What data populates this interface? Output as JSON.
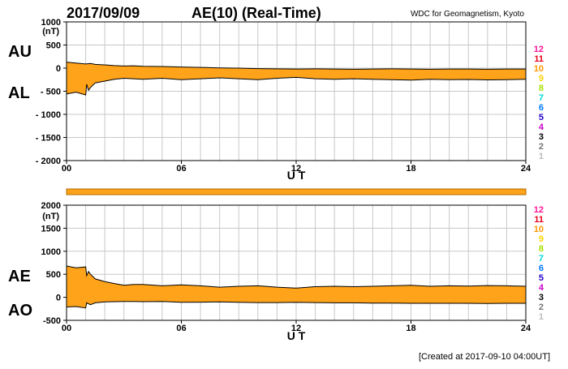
{
  "header": {
    "date": "2017/09/09",
    "title": "AE(10) (Real-Time)",
    "source": "WDC for Geomagnetism, Kyoto"
  },
  "footer": {
    "created": "[Created at 2017-09-10 04:00UT]"
  },
  "colors": {
    "fill": "#ffa31a",
    "grid": "#c8c8c8",
    "axis": "#000000",
    "station_bar": "#ffa31a"
  },
  "station_counts": [
    {
      "label": "12",
      "color": "#ff1493"
    },
    {
      "label": "11",
      "color": "#e8001a"
    },
    {
      "label": "10",
      "color": "#ff9900"
    },
    {
      "label": "9",
      "color": "#ffd400"
    },
    {
      "label": "8",
      "color": "#a8e000"
    },
    {
      "label": "7",
      "color": "#00d8d8"
    },
    {
      "label": "6",
      "color": "#0077ff"
    },
    {
      "label": "5",
      "color": "#2200cc"
    },
    {
      "label": "4",
      "color": "#cc00cc"
    },
    {
      "label": "3",
      "color": "#000000"
    },
    {
      "label": "2",
      "color": "#777777"
    },
    {
      "label": "1",
      "color": "#bbbbbb"
    }
  ],
  "chart_data": [
    {
      "type": "area",
      "id": "au-al",
      "upper_label": "AU",
      "lower_label": "AL",
      "unit": "(nT)",
      "xlabel": "U T",
      "xlim": [
        0,
        24
      ],
      "x_ticks": [
        "00",
        "06",
        "12",
        "18",
        "24"
      ],
      "ylim": [
        -2000,
        1000
      ],
      "y_ticks": [
        "1000",
        "500",
        "0",
        "- 500",
        "- 1000",
        "- 1500",
        "- 2000"
      ],
      "series": [
        {
          "name": "AU",
          "x": [
            0,
            0.5,
            1,
            1.25,
            1.5,
            2,
            2.5,
            3,
            3.5,
            4,
            5,
            6,
            7,
            8,
            9,
            10,
            11,
            12,
            13,
            14,
            15,
            16,
            17,
            18,
            19,
            20,
            21,
            22,
            23,
            24
          ],
          "values": [
            130,
            110,
            90,
            100,
            80,
            70,
            55,
            45,
            50,
            40,
            35,
            25,
            15,
            5,
            0,
            -10,
            -15,
            -20,
            -15,
            -20,
            -25,
            -20,
            -15,
            -20,
            -25,
            -20,
            -20,
            -25,
            -20,
            -20
          ]
        },
        {
          "name": "AL",
          "x": [
            0,
            0.5,
            1,
            1.05,
            1.15,
            1.25,
            1.5,
            2,
            2.5,
            3,
            3.5,
            4,
            5,
            6,
            7,
            8,
            9,
            10,
            11,
            12,
            13,
            14,
            15,
            16,
            17,
            18,
            19,
            20,
            21,
            22,
            23,
            24
          ],
          "values": [
            -560,
            -520,
            -580,
            -350,
            -480,
            -420,
            -320,
            -280,
            -240,
            -220,
            -230,
            -240,
            -220,
            -250,
            -230,
            -210,
            -230,
            -250,
            -220,
            -200,
            -230,
            -240,
            -230,
            -240,
            -250,
            -260,
            -240,
            -250,
            -245,
            -255,
            -250,
            -240
          ]
        }
      ]
    },
    {
      "type": "area",
      "id": "ae-ao",
      "upper_label": "AE",
      "lower_label": "AO",
      "unit": "(nT)",
      "xlabel": "U T",
      "xlim": [
        0,
        24
      ],
      "x_ticks": [
        "00",
        "06",
        "12",
        "18",
        "24"
      ],
      "ylim": [
        -500,
        2000
      ],
      "y_ticks": [
        "2000",
        "1500",
        "1000",
        "500",
        "0",
        "-500"
      ],
      "series": [
        {
          "name": "AE",
          "x": [
            0,
            0.5,
            1,
            1.05,
            1.15,
            1.25,
            1.5,
            2,
            2.5,
            3,
            3.5,
            4,
            5,
            6,
            7,
            8,
            9,
            10,
            11,
            12,
            13,
            14,
            15,
            16,
            17,
            18,
            19,
            20,
            21,
            22,
            23,
            24
          ],
          "values": [
            680,
            640,
            660,
            470,
            560,
            500,
            400,
            340,
            300,
            260,
            280,
            280,
            250,
            270,
            250,
            220,
            240,
            250,
            220,
            200,
            230,
            240,
            230,
            240,
            250,
            260,
            240,
            250,
            245,
            255,
            250,
            240
          ]
        },
        {
          "name": "AO",
          "x": [
            0,
            0.5,
            1,
            1.05,
            1.25,
            1.5,
            2,
            2.5,
            3,
            3.5,
            4,
            5,
            6,
            7,
            8,
            9,
            10,
            11,
            12,
            13,
            14,
            15,
            16,
            17,
            18,
            19,
            20,
            21,
            22,
            23,
            24
          ],
          "values": [
            -210,
            -200,
            -230,
            -120,
            -160,
            -120,
            -100,
            -95,
            -90,
            -90,
            -95,
            -90,
            -110,
            -105,
            -100,
            -110,
            -115,
            -115,
            -110,
            -115,
            -120,
            -120,
            -125,
            -125,
            -130,
            -130,
            -130,
            -130,
            -135,
            -130,
            -130
          ]
        }
      ]
    }
  ]
}
